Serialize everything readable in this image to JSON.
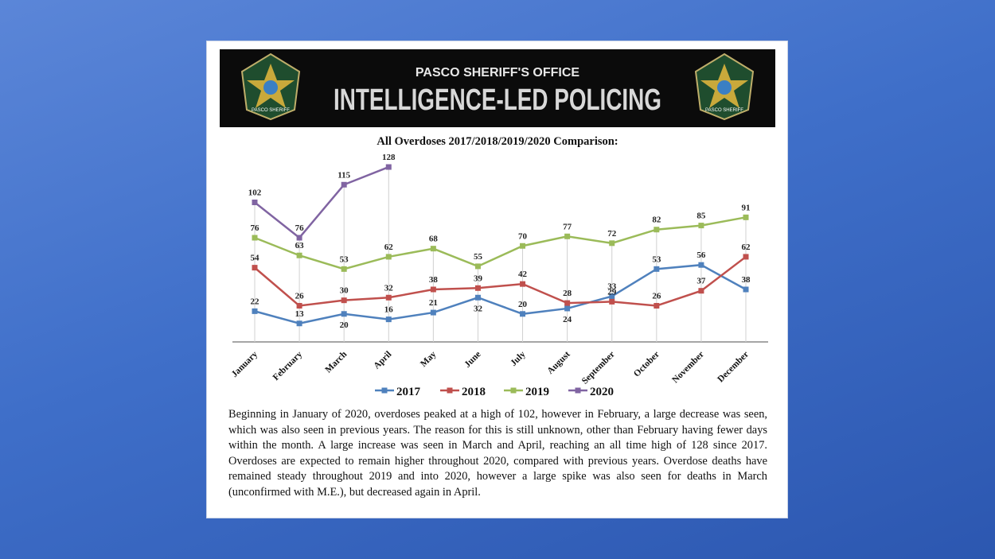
{
  "header": {
    "subtitle": "PASCO SHERIFF'S OFFICE",
    "title": "INTELLIGENCE-LED POLICING",
    "badge": "PASCO SHERIFF"
  },
  "chart_data": {
    "type": "line",
    "title": "All Overdoses 2017/2018/2019/2020 Comparison:",
    "categories": [
      "January",
      "February",
      "March",
      "April",
      "May",
      "June",
      "July",
      "August",
      "September",
      "October",
      "November",
      "December"
    ],
    "series": [
      {
        "name": "2017",
        "color": "#4f81bd",
        "values": [
          22,
          13,
          20,
          16,
          21,
          32,
          20,
          24,
          33,
          53,
          56,
          38
        ]
      },
      {
        "name": "2018",
        "color": "#c0504d",
        "values": [
          54,
          26,
          30,
          32,
          38,
          39,
          42,
          28,
          29,
          26,
          37,
          62
        ]
      },
      {
        "name": "2019",
        "color": "#9bbb59",
        "values": [
          76,
          63,
          53,
          62,
          68,
          55,
          70,
          77,
          72,
          82,
          85,
          91
        ]
      },
      {
        "name": "2020",
        "color": "#8064a2",
        "values": [
          102,
          76,
          115,
          128,
          null,
          null,
          null,
          null,
          null,
          null,
          null,
          null
        ]
      }
    ],
    "ylim": [
      0,
      140
    ],
    "legend": "bottom"
  },
  "text": "Beginning in January of 2020, overdoses peaked at a high of 102, however in February, a large decrease was seen, which was also seen in previous years. The reason for this is still unknown, other than February having fewer days within the month. A large increase was seen in March and April, reaching an all time high of 128 since 2017. Overdoses are expected to remain higher throughout 2020, compared with previous years. Overdose deaths have remained steady throughout 2019 and into 2020, however a large spike was also seen for deaths in March (unconfirmed with M.E.), but decreased again in April."
}
